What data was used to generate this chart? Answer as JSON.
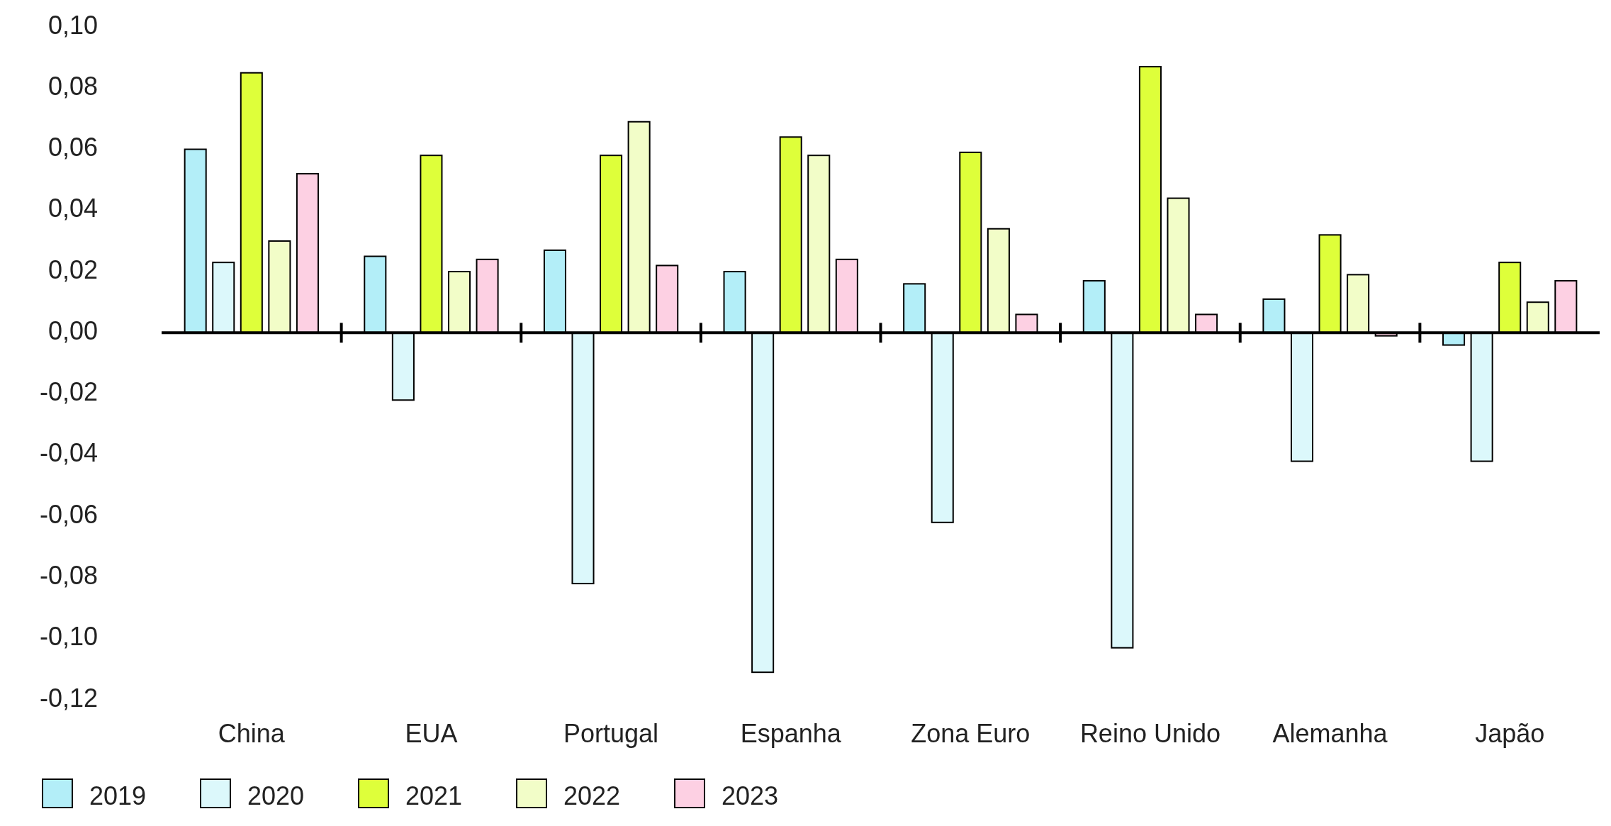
{
  "chart_data": {
    "type": "bar",
    "categories": [
      "China",
      "EUA",
      "Portugal",
      "Espanha",
      "Zona Euro",
      "Reino Unido",
      "Alemanha",
      "Japão"
    ],
    "series": [
      {
        "name": "2019",
        "color": "#b3eef8",
        "values": [
          0.06,
          0.025,
          0.027,
          0.02,
          0.016,
          0.017,
          0.011,
          -0.004
        ]
      },
      {
        "name": "2020",
        "color": "#dcf8fb",
        "values": [
          0.023,
          -0.022,
          -0.082,
          -0.111,
          -0.062,
          -0.103,
          -0.042,
          -0.042
        ]
      },
      {
        "name": "2021",
        "color": "#deff3a",
        "values": [
          0.085,
          0.058,
          0.058,
          0.064,
          0.059,
          0.087,
          0.032,
          0.023
        ]
      },
      {
        "name": "2022",
        "color": "#f2fdc8",
        "values": [
          0.03,
          0.02,
          0.069,
          0.058,
          0.034,
          0.044,
          0.019,
          0.01
        ]
      },
      {
        "name": "2023",
        "color": "#fdd0e3",
        "values": [
          0.052,
          0.024,
          0.022,
          0.024,
          0.006,
          0.006,
          -0.001,
          0.017
        ]
      }
    ],
    "ylim": [
      -0.12,
      0.1
    ],
    "yticks": [
      {
        "value": 0.1,
        "label": "0,10"
      },
      {
        "value": 0.08,
        "label": "0,08"
      },
      {
        "value": 0.06,
        "label": "0,06"
      },
      {
        "value": 0.04,
        "label": "0,04"
      },
      {
        "value": 0.02,
        "label": "0,02"
      },
      {
        "value": 0,
        "label": "0,00"
      },
      {
        "value": -0.02,
        "label": "-0,02"
      },
      {
        "value": -0.04,
        "label": "-0,04"
      },
      {
        "value": -0.06,
        "label": "-0,06"
      },
      {
        "value": -0.08,
        "label": "-0,08"
      },
      {
        "value": -0.1,
        "label": "-0,10"
      },
      {
        "value": -0.12,
        "label": "-0,12"
      }
    ],
    "legend": "bottom"
  }
}
